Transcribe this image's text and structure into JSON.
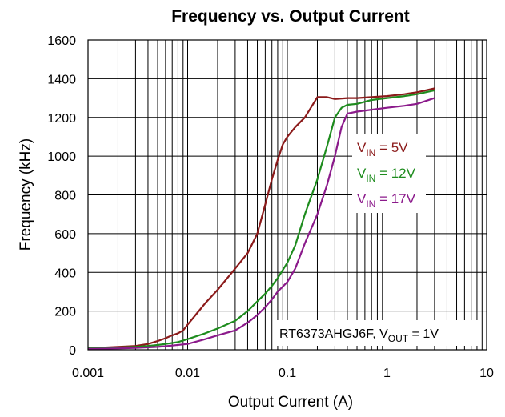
{
  "chart_data": {
    "type": "line",
    "title": "Frequency vs. Output Current",
    "xlabel": "Output Current (A)",
    "ylabel": "Frequency (kHz)",
    "x_scale": "log",
    "xlim": [
      0.001,
      10
    ],
    "ylim": [
      0,
      1600
    ],
    "x_ticks": [
      0.001,
      0.01,
      0.1,
      1,
      10
    ],
    "x_tick_labels": [
      "0.001",
      "0.01",
      "0.1",
      "1",
      "10"
    ],
    "y_ticks": [
      0,
      200,
      400,
      600,
      800,
      1000,
      1200,
      1400,
      1600
    ],
    "y_tick_labels": [
      "0",
      "200",
      "400",
      "600",
      "800",
      "1000",
      "1200",
      "1400",
      "1600"
    ],
    "grid": true,
    "legend_position": "center-right",
    "annotation": {
      "text_main": "RT6373AHGJ6F, V",
      "text_sub": "OUT",
      "text_tail": " = 1V"
    },
    "series": [
      {
        "name": "VIN = 5V",
        "label_main": "V",
        "label_sub": "IN",
        "label_tail": " = 5V",
        "color": "#8B1A1A",
        "x": [
          0.001,
          0.0015,
          0.002,
          0.003,
          0.004,
          0.005,
          0.006,
          0.007,
          0.008,
          0.009,
          0.01,
          0.012,
          0.015,
          0.02,
          0.025,
          0.03,
          0.04,
          0.05,
          0.06,
          0.07,
          0.08,
          0.09,
          0.1,
          0.12,
          0.15,
          0.2,
          0.25,
          0.3,
          0.4,
          0.5,
          0.7,
          1,
          1.5,
          2,
          3
        ],
        "y": [
          10,
          12,
          15,
          20,
          30,
          45,
          60,
          75,
          85,
          100,
          130,
          180,
          240,
          310,
          370,
          420,
          500,
          600,
          750,
          880,
          980,
          1060,
          1100,
          1150,
          1200,
          1305,
          1305,
          1295,
          1300,
          1300,
          1305,
          1310,
          1320,
          1330,
          1350
        ]
      },
      {
        "name": "VIN = 12V",
        "label_main": "V",
        "label_sub": "IN",
        "label_tail": " = 12V",
        "color": "#1E8C1E",
        "x": [
          0.001,
          0.0015,
          0.002,
          0.003,
          0.004,
          0.005,
          0.006,
          0.007,
          0.008,
          0.01,
          0.015,
          0.02,
          0.03,
          0.04,
          0.05,
          0.06,
          0.07,
          0.08,
          0.1,
          0.12,
          0.15,
          0.2,
          0.25,
          0.3,
          0.35,
          0.4,
          0.5,
          0.7,
          1,
          1.5,
          2,
          3
        ],
        "y": [
          8,
          10,
          12,
          15,
          20,
          25,
          30,
          35,
          40,
          55,
          85,
          110,
          150,
          200,
          250,
          290,
          330,
          370,
          450,
          540,
          700,
          880,
          1050,
          1200,
          1250,
          1265,
          1270,
          1290,
          1300,
          1310,
          1320,
          1340
        ]
      },
      {
        "name": "VIN = 17V",
        "label_main": "V",
        "label_sub": "IN",
        "label_tail": " = 17V",
        "color": "#8B1A8B",
        "x": [
          0.001,
          0.002,
          0.003,
          0.005,
          0.007,
          0.01,
          0.015,
          0.02,
          0.03,
          0.04,
          0.05,
          0.06,
          0.07,
          0.08,
          0.1,
          0.12,
          0.15,
          0.2,
          0.25,
          0.3,
          0.35,
          0.4,
          0.5,
          0.7,
          1,
          1.5,
          2,
          3
        ],
        "y": [
          5,
          7,
          10,
          15,
          22,
          30,
          55,
          75,
          100,
          140,
          180,
          220,
          260,
          300,
          350,
          420,
          550,
          700,
          850,
          1000,
          1150,
          1220,
          1230,
          1240,
          1250,
          1260,
          1270,
          1300
        ]
      }
    ]
  }
}
